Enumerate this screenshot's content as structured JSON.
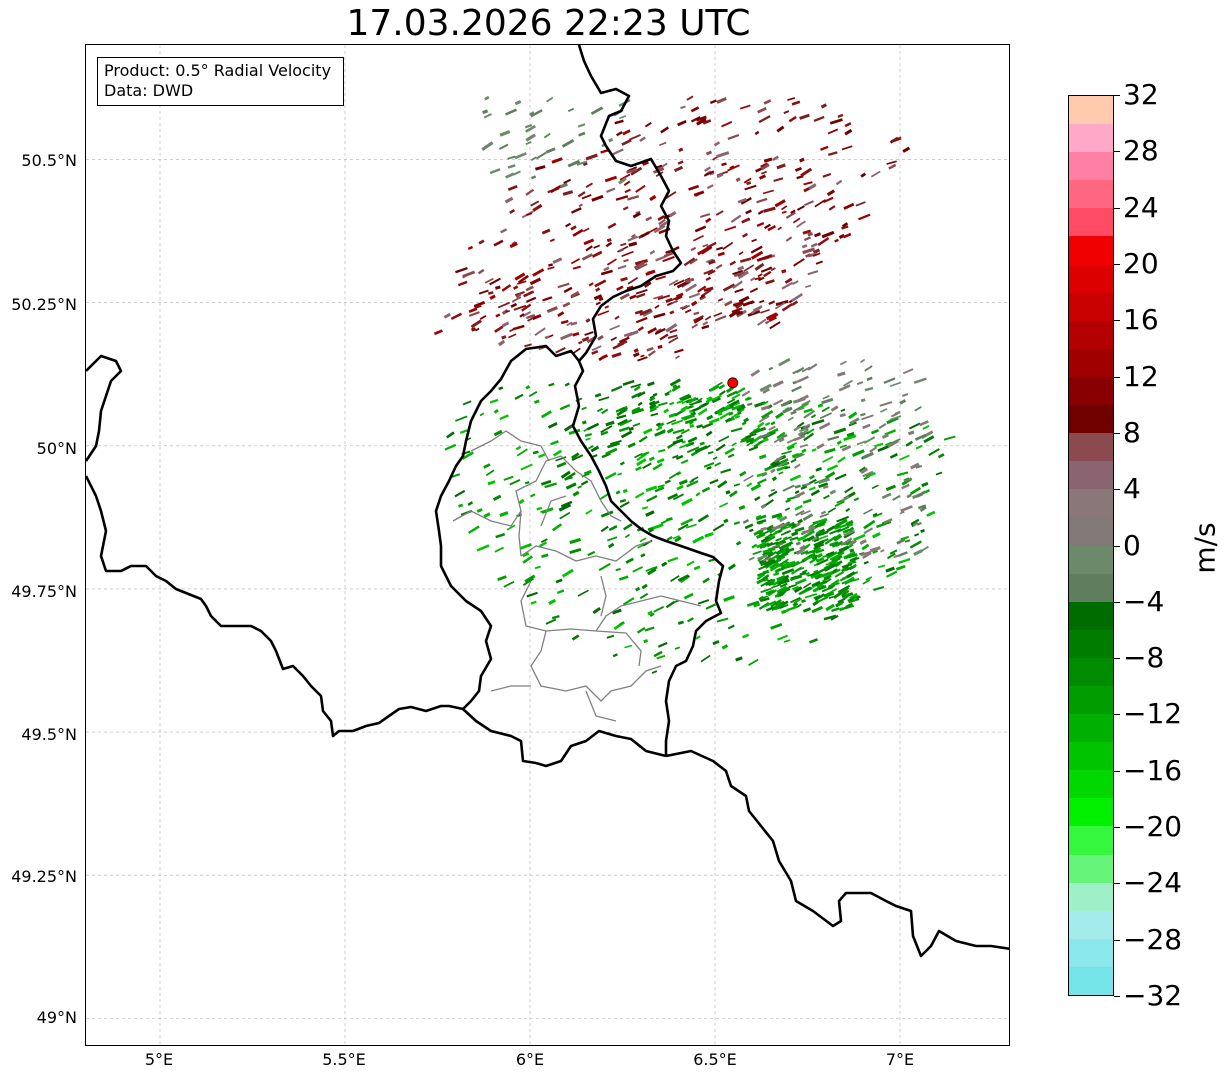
{
  "title": "17.03.2026 22:23 UTC",
  "info": {
    "product": "Product: 0.5° Radial Velocity",
    "data_source": "Data: DWD"
  },
  "map": {
    "lon_range": [
      4.8,
      7.3
    ],
    "lat_range": [
      48.95,
      50.7
    ],
    "lat_ticks": [
      {
        "value": 50.5,
        "label": "50.5°N"
      },
      {
        "value": 50.25,
        "label": "50.25°N"
      },
      {
        "value": 50.0,
        "label": "50°N"
      },
      {
        "value": 49.75,
        "label": "49.75°N"
      },
      {
        "value": 49.5,
        "label": "49.5°N"
      },
      {
        "value": 49.25,
        "label": "49.25°N"
      },
      {
        "value": 49.0,
        "label": "49°N"
      }
    ],
    "lon_ticks": [
      {
        "value": 5.0,
        "label": "5°E"
      },
      {
        "value": 5.5,
        "label": "5.5°E"
      },
      {
        "value": 6.0,
        "label": "6°E"
      },
      {
        "value": 6.5,
        "label": "6.5°E"
      },
      {
        "value": 7.0,
        "label": "7°E"
      }
    ],
    "gridlines": true,
    "radar_site": {
      "lon": 6.548,
      "lat": 50.11,
      "color": "#ff0000"
    }
  },
  "colorbar": {
    "unit": "m/s",
    "min": -32,
    "max": 32,
    "tick_values": [
      32,
      28,
      24,
      20,
      16,
      12,
      8,
      4,
      0,
      -4,
      -8,
      -12,
      -16,
      -20,
      -24,
      -28,
      -32
    ],
    "tick_labels": [
      "32",
      "28",
      "24",
      "20",
      "16",
      "12",
      "8",
      "4",
      "0",
      "−4",
      "−8",
      "−12",
      "−16",
      "−20",
      "−24",
      "−28",
      "−32"
    ],
    "colors": [
      "#74e4e8",
      "#8ae8ec",
      "#a4ecec",
      "#9ef0c8",
      "#66f47a",
      "#33f83e",
      "#00f000",
      "#00d800",
      "#00c400",
      "#00b000",
      "#009c00",
      "#008c00",
      "#007c00",
      "#006c00",
      "#5e7e5e",
      "#6a8a6a",
      "#827878",
      "#8a7878",
      "#8a6470",
      "#8a4a50",
      "#700000",
      "#880000",
      "#a00000",
      "#b40000",
      "#c80000",
      "#dc0000",
      "#f00000",
      "#ff4c64",
      "#ff6680",
      "#ff80a4",
      "#ffa8c8",
      "#ffcaae"
    ]
  }
}
